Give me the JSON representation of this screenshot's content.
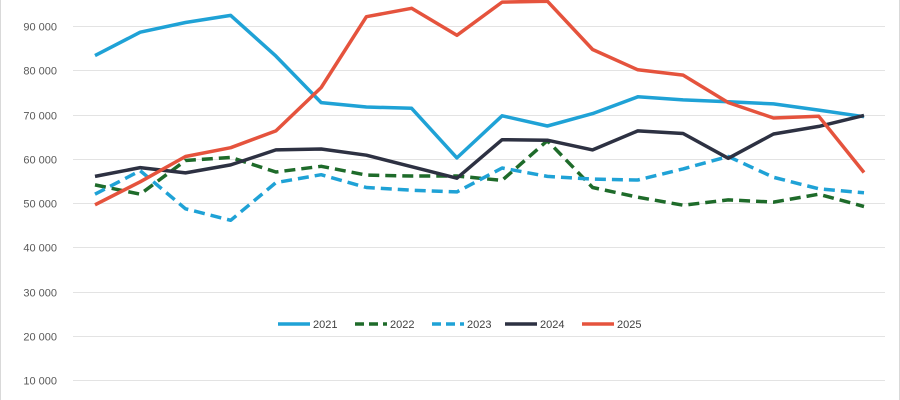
{
  "chart_data": {
    "type": "line",
    "title": "",
    "xlabel": "",
    "ylabel": "",
    "ylim": [
      0,
      95000
    ],
    "yticks": [
      {
        "value": 10000,
        "label": "10 000"
      },
      {
        "value": 20000,
        "label": "20 000"
      },
      {
        "value": 30000,
        "label": "30 000"
      },
      {
        "value": 40000,
        "label": "40 000"
      },
      {
        "value": 50000,
        "label": "50 000"
      },
      {
        "value": 60000,
        "label": "60 000"
      },
      {
        "value": 70000,
        "label": "70 000"
      },
      {
        "value": 80000,
        "label": "80 000"
      },
      {
        "value": 90000,
        "label": "90 000"
      }
    ],
    "x": [
      1,
      2,
      3,
      4,
      5,
      6,
      7,
      8,
      9,
      10,
      11,
      12,
      13,
      14,
      15,
      16,
      17,
      18
    ],
    "grid": true,
    "legend_position": "bottom-center",
    "series": [
      {
        "name": "2021",
        "color": "#1fa2d6",
        "dash": "solid",
        "values": [
          83300,
          88600,
          90800,
          92400,
          83200,
          72700,
          71700,
          71400,
          60200,
          69700,
          67400,
          70200,
          74000,
          73300,
          72900,
          72400,
          71000,
          69500
        ]
      },
      {
        "name": "2022",
        "color": "#1e6b2a",
        "dash": "dash",
        "values": [
          54100,
          52000,
          59600,
          60300,
          57000,
          58300,
          56300,
          56100,
          56100,
          55100,
          64100,
          53500,
          51300,
          49500,
          50700,
          50200,
          52000,
          49200
        ]
      },
      {
        "name": "2023",
        "color": "#1fa2d6",
        "dash": "dash",
        "values": [
          52000,
          57300,
          48700,
          46100,
          54600,
          56400,
          53500,
          52900,
          52500,
          57900,
          56000,
          55400,
          55200,
          57700,
          60500,
          55800,
          53200,
          52300
        ]
      },
      {
        "name": "2024",
        "color": "#2d3142",
        "dash": "solid",
        "values": [
          56000,
          58000,
          56800,
          58600,
          62000,
          62200,
          60800,
          58200,
          55600,
          64300,
          64200,
          62000,
          66300,
          65700,
          60100,
          65600,
          67300,
          69800
        ]
      },
      {
        "name": "2025",
        "color": "#e5533d",
        "dash": "solid",
        "values": [
          49600,
          54800,
          60500,
          62500,
          66300,
          76100,
          92100,
          94000,
          87900,
          95400,
          95600,
          84700,
          80100,
          78900,
          72700,
          69200,
          69600,
          56900
        ]
      }
    ]
  }
}
